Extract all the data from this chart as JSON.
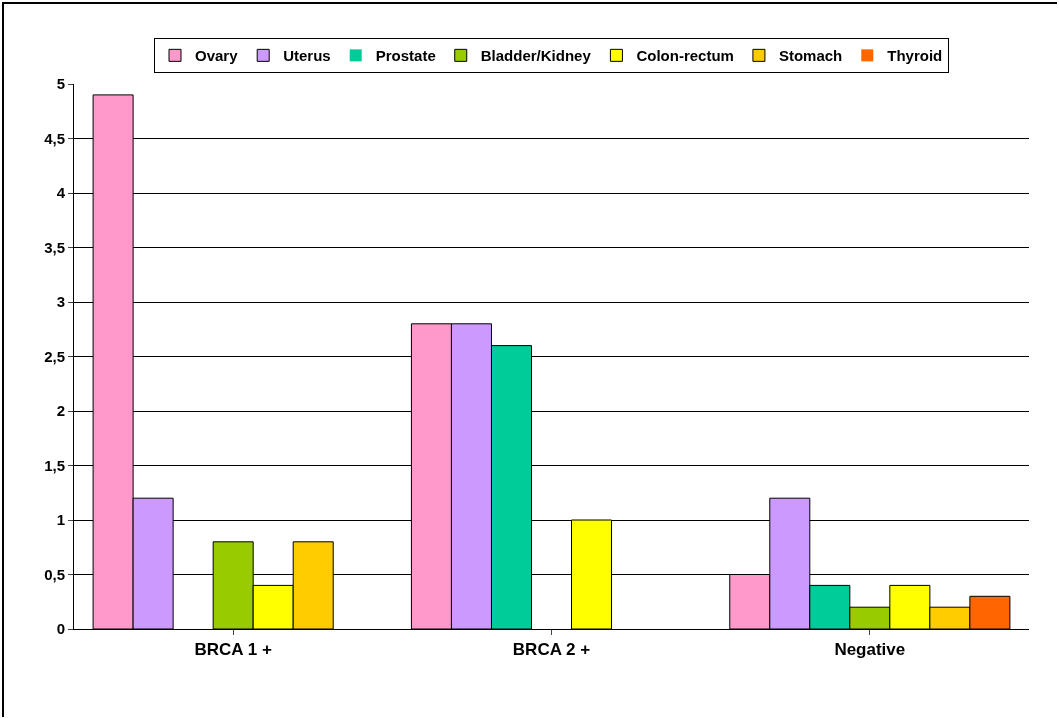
{
  "chart_data": {
    "type": "bar",
    "categories": [
      "BRCA 1 +",
      "BRCA 2 +",
      "Negative"
    ],
    "series": [
      {
        "name": "Ovary",
        "color": "#ff99cc",
        "values": [
          4.9,
          2.8,
          0.5
        ]
      },
      {
        "name": "Uterus",
        "color": "#cc99ff",
        "values": [
          1.2,
          2.8,
          1.2
        ]
      },
      {
        "name": "Prostate",
        "color": "#00cc99",
        "values": [
          0,
          2.6,
          0.4
        ]
      },
      {
        "name": "Bladder/Kidney",
        "color": "#99cc00",
        "values": [
          0.8,
          0,
          0.2
        ]
      },
      {
        "name": "Colon-rectum",
        "color": "#ffff00",
        "values": [
          0.4,
          1.0,
          0.4
        ]
      },
      {
        "name": "Stomach",
        "color": "#ffcc00",
        "values": [
          0.8,
          0,
          0.2
        ]
      },
      {
        "name": "Thyroid",
        "color": "#ff6600",
        "values": [
          0,
          0,
          0.3
        ]
      }
    ],
    "ylim": [
      0,
      5
    ],
    "yticks": [
      0,
      {
        "value": 0.5,
        "label": "0,5"
      },
      1,
      {
        "value": 1.5,
        "label": "1,5"
      },
      2,
      {
        "value": 2.5,
        "label": "2,5"
      },
      3,
      {
        "value": 3.5,
        "label": "3,5"
      },
      4,
      {
        "value": 4.5,
        "label": "4,5"
      },
      5
    ],
    "grid": "y",
    "legend": "top"
  }
}
